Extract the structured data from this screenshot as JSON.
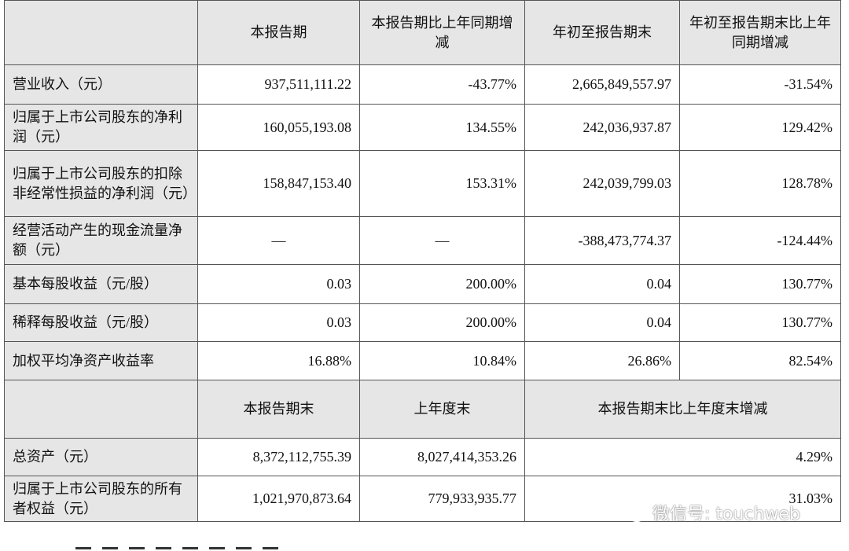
{
  "table1": {
    "headers": [
      "",
      "本报告期",
      "本报告期比上年同期增减",
      "年初至报告期末",
      "年初至报告期末比上年同期增减"
    ],
    "rows": [
      {
        "label": "营业收入（元）",
        "cells": [
          "937,511,111.22",
          "-43.77%",
          "2,665,849,557.97",
          "-31.54%"
        ]
      },
      {
        "label": "归属于上市公司股东的净利润（元）",
        "cells": [
          "160,055,193.08",
          "134.55%",
          "242,036,937.87",
          "129.42%"
        ]
      },
      {
        "label": "归属于上市公司股东的扣除非经常性损益的净利润（元）",
        "cells": [
          "158,847,153.40",
          "153.31%",
          "242,039,799.03",
          "128.78%"
        ]
      },
      {
        "label": "经营活动产生的现金流量净额（元）",
        "cells": [
          "—",
          "—",
          "-388,473,774.37",
          "-124.44%"
        ]
      },
      {
        "label": "基本每股收益（元/股）",
        "cells": [
          "0.03",
          "200.00%",
          "0.04",
          "130.77%"
        ]
      },
      {
        "label": "稀释每股收益（元/股）",
        "cells": [
          "0.03",
          "200.00%",
          "0.04",
          "130.77%"
        ]
      },
      {
        "label": "加权平均净资产收益率",
        "cells": [
          "16.88%",
          "10.84%",
          "26.86%",
          "82.54%"
        ]
      }
    ]
  },
  "table2": {
    "headers": [
      "",
      "本报告期末",
      "上年度末",
      "本报告期末比上年度末增减"
    ],
    "rows": [
      {
        "label": "总资产（元）",
        "cells": [
          "8,372,112,755.39",
          "8,027,414,353.26",
          "4.29%"
        ]
      },
      {
        "label": "归属于上市公司股东的所有者权益（元）",
        "cells": [
          "1,021,970,873.64",
          "779,933,935.77",
          "31.03%"
        ]
      }
    ]
  },
  "watermark": {
    "text": "微信号: touchweb",
    "icon": "wechat-icon"
  }
}
